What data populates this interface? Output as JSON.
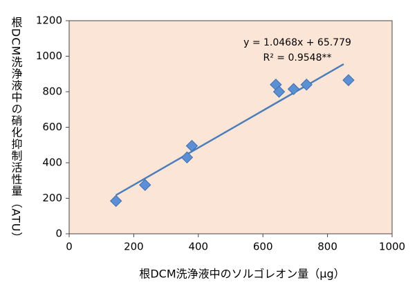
{
  "chart_data": {
    "type": "scatter",
    "x_label": "根DCM洗浄液中のソルゴレオン量（μg）",
    "y_label": "根DCM洗浄液中の硝化抑制活性量（ATU）",
    "equation": "y = 1.0468x + 65.779",
    "r_squared": "R² = 0.9548**",
    "series": [
      {
        "color": "#5b8fd6",
        "x": [
          145,
          235,
          365,
          380,
          640,
          650,
          695,
          735,
          865
        ],
        "values": [
          185,
          275,
          430,
          495,
          840,
          800,
          815,
          840,
          865
        ]
      }
    ],
    "trendline": {
      "slope": 1.0468,
      "intercept": 65.779,
      "xrange": [
        145,
        850
      ],
      "color": "#4a7ebb"
    },
    "xlim": [
      0,
      1000
    ],
    "xticks": [
      0,
      200,
      400,
      600,
      800,
      1000
    ],
    "ylim": [
      0,
      1200
    ],
    "yticks": [
      0,
      200,
      400,
      600,
      800,
      1000,
      1200
    ],
    "background": "#fbe5d6"
  }
}
